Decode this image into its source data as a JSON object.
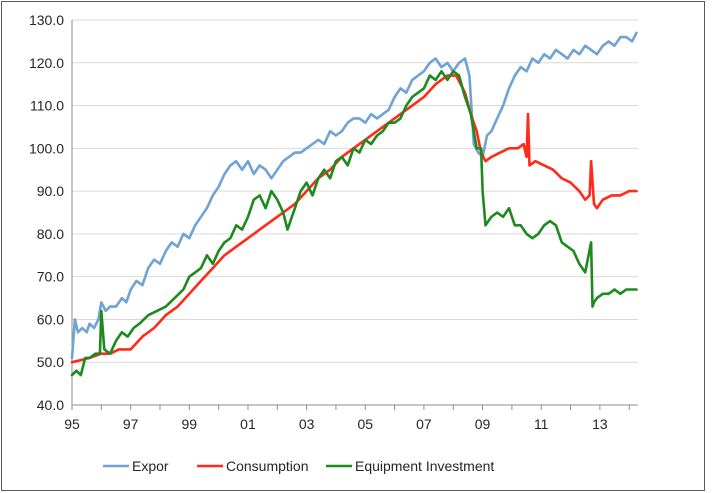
{
  "chart_data": {
    "type": "line",
    "xlabel": "",
    "ylabel": "",
    "xlim": [
      1995.0,
      2014.3
    ],
    "ylim": [
      40,
      130
    ],
    "y_ticks": [
      "40.0",
      "50.0",
      "60.0",
      "70.0",
      "80.0",
      "90.0",
      "100.0",
      "110.0",
      "120.0",
      "130.0"
    ],
    "x_ticks": [
      "95",
      "97",
      "99",
      "01",
      "03",
      "05",
      "07",
      "09",
      "11",
      "13"
    ],
    "grid": "horizontal",
    "legend_position": "bottom",
    "series": [
      {
        "name": "Expor",
        "color": "#6fa3d6",
        "x": [
          1995.0,
          1995.1,
          1995.2,
          1995.35,
          1995.5,
          1995.6,
          1995.75,
          1995.9,
          1996.0,
          1996.15,
          1996.3,
          1996.5,
          1996.7,
          1996.85,
          1997.0,
          1997.2,
          1997.4,
          1997.6,
          1997.8,
          1998.0,
          1998.2,
          1998.4,
          1998.6,
          1998.8,
          1999.0,
          1999.2,
          1999.4,
          1999.6,
          1999.8,
          2000.0,
          2000.2,
          2000.4,
          2000.6,
          2000.8,
          2001.0,
          2001.2,
          2001.4,
          2001.6,
          2001.8,
          2002.0,
          2002.2,
          2002.4,
          2002.6,
          2002.8,
          2003.0,
          2003.2,
          2003.4,
          2003.6,
          2003.8,
          2004.0,
          2004.2,
          2004.4,
          2004.6,
          2004.8,
          2005.0,
          2005.2,
          2005.4,
          2005.6,
          2005.8,
          2006.0,
          2006.2,
          2006.4,
          2006.6,
          2006.8,
          2007.0,
          2007.2,
          2007.4,
          2007.6,
          2007.8,
          2008.0,
          2008.2,
          2008.4,
          2008.55,
          2008.7,
          2008.85,
          2009.0,
          2009.15,
          2009.3,
          2009.5,
          2009.7,
          2009.9,
          2010.1,
          2010.3,
          2010.5,
          2010.7,
          2010.9,
          2011.1,
          2011.3,
          2011.5,
          2011.7,
          2011.9,
          2012.1,
          2012.3,
          2012.5,
          2012.7,
          2012.9,
          2013.1,
          2013.3,
          2013.5,
          2013.7,
          2013.9,
          2014.1,
          2014.25
        ],
        "y": [
          51,
          60,
          57,
          58,
          57,
          59,
          58,
          60,
          64,
          62,
          63,
          63,
          65,
          64,
          67,
          69,
          68,
          72,
          74,
          73,
          76,
          78,
          77,
          80,
          79,
          82,
          84,
          86,
          89,
          91,
          94,
          96,
          97,
          95,
          97,
          94,
          96,
          95,
          93,
          95,
          97,
          98,
          99,
          99,
          100,
          101,
          102,
          101,
          104,
          103,
          104,
          106,
          107,
          107,
          106,
          108,
          107,
          108,
          109,
          112,
          114,
          113,
          116,
          117,
          118,
          120,
          121,
          119,
          120,
          118,
          120,
          121,
          117,
          101,
          99,
          98,
          103,
          104,
          107,
          110,
          114,
          117,
          119,
          118,
          121,
          120,
          122,
          121,
          123,
          122,
          121,
          123,
          122,
          124,
          123,
          122,
          124,
          125,
          124,
          126,
          126,
          125,
          127
        ]
      },
      {
        "name": "Consumption",
        "color": "#ff2a1a",
        "x": [
          1995.0,
          1995.3,
          1995.6,
          1996.0,
          1996.3,
          1996.6,
          1997.0,
          1997.4,
          1997.8,
          1998.2,
          1998.6,
          1999.0,
          1999.4,
          1999.8,
          2000.2,
          2000.6,
          2001.0,
          2001.4,
          2001.8,
          2002.2,
          2002.6,
          2003.0,
          2003.4,
          2003.8,
          2004.2,
          2004.6,
          2005.0,
          2005.4,
          2005.8,
          2006.2,
          2006.6,
          2007.0,
          2007.4,
          2007.8,
          2008.1,
          2008.4,
          2008.6,
          2008.8,
          2008.95,
          2009.1,
          2009.3,
          2009.6,
          2009.9,
          2010.2,
          2010.4,
          2010.5,
          2010.55,
          2010.6,
          2010.8,
          2011.1,
          2011.4,
          2011.7,
          2012.0,
          2012.3,
          2012.5,
          2012.65,
          2012.7,
          2012.8,
          2012.9,
          2013.1,
          2013.4,
          2013.7,
          2014.0,
          2014.25
        ],
        "y": [
          50,
          50.5,
          51,
          52,
          52,
          53,
          53,
          56,
          58,
          61,
          63,
          66,
          69,
          72,
          75,
          77,
          79,
          81,
          83,
          85,
          87,
          90,
          93,
          95,
          98,
          100,
          102,
          104,
          106,
          108,
          110,
          112,
          115,
          117,
          117,
          113,
          108,
          104,
          99,
          97,
          98,
          99,
          100,
          100,
          101,
          98,
          108,
          96,
          97,
          96,
          95,
          93,
          92,
          90,
          88,
          89,
          97,
          87,
          86,
          88,
          89,
          89,
          90,
          90
        ]
      },
      {
        "name": "Equipment Investment",
        "color": "#1e8a1e",
        "x": [
          1995.0,
          1995.15,
          1995.3,
          1995.45,
          1995.6,
          1995.8,
          1995.95,
          1996.0,
          1996.1,
          1996.3,
          1996.5,
          1996.7,
          1996.9,
          1997.1,
          1997.3,
          1997.6,
          1997.9,
          1998.2,
          1998.5,
          1998.8,
          1999.0,
          1999.2,
          1999.4,
          1999.6,
          1999.8,
          2000.0,
          2000.2,
          2000.4,
          2000.6,
          2000.8,
          2001.0,
          2001.2,
          2001.4,
          2001.6,
          2001.8,
          2002.0,
          2002.2,
          2002.35,
          2002.6,
          2002.8,
          2003.0,
          2003.2,
          2003.4,
          2003.6,
          2003.8,
          2004.0,
          2004.2,
          2004.4,
          2004.6,
          2004.8,
          2005.0,
          2005.2,
          2005.4,
          2005.6,
          2005.8,
          2006.0,
          2006.2,
          2006.4,
          2006.6,
          2006.8,
          2007.0,
          2007.2,
          2007.4,
          2007.6,
          2007.8,
          2008.0,
          2008.2,
          2008.4,
          2008.6,
          2008.8,
          2008.95,
          2009.0,
          2009.1,
          2009.3,
          2009.5,
          2009.7,
          2009.9,
          2010.1,
          2010.3,
          2010.5,
          2010.7,
          2010.9,
          2011.1,
          2011.3,
          2011.5,
          2011.7,
          2011.9,
          2012.1,
          2012.3,
          2012.5,
          2012.7,
          2012.75,
          2012.8,
          2012.9,
          2013.1,
          2013.3,
          2013.5,
          2013.7,
          2013.9,
          2014.1,
          2014.25
        ],
        "y": [
          47,
          48,
          47,
          51,
          51,
          52,
          52,
          62,
          53,
          52,
          55,
          57,
          56,
          58,
          59,
          61,
          62,
          63,
          65,
          67,
          70,
          71,
          72,
          75,
          73,
          76,
          78,
          79,
          82,
          81,
          84,
          88,
          89,
          86,
          90,
          88,
          85,
          81,
          86,
          90,
          92,
          89,
          93,
          95,
          93,
          97,
          98,
          96,
          100,
          99,
          102,
          101,
          103,
          104,
          106,
          106,
          107,
          110,
          112,
          113,
          114,
          117,
          116,
          118,
          116,
          118,
          117,
          112,
          108,
          100,
          100,
          90,
          82,
          84,
          85,
          84,
          86,
          82,
          82,
          80,
          79,
          80,
          82,
          83,
          82,
          78,
          77,
          76,
          73,
          71,
          78,
          63,
          64,
          65,
          66,
          66,
          67,
          66,
          67,
          67,
          67
        ]
      }
    ]
  }
}
